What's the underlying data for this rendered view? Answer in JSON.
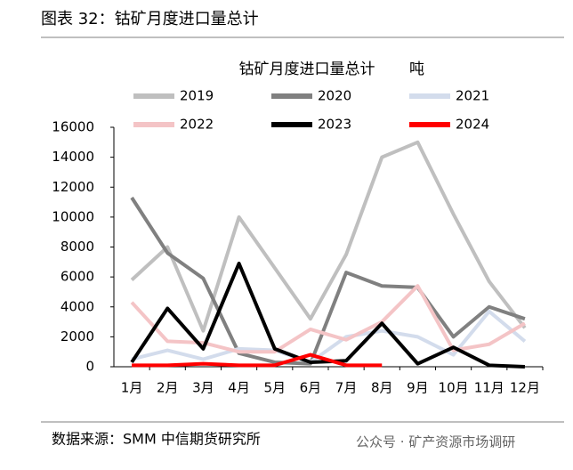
{
  "header": "图表 32：钴矿月度进口量总计",
  "source": "数据来源：SMM 中信期货研究所",
  "watermark": "公众号 · 矿产资源市场调研",
  "chart_data": {
    "type": "line",
    "title": "钴矿月度进口量总计",
    "y_label": "吨",
    "categories": [
      "1月",
      "2月",
      "3月",
      "4月",
      "5月",
      "6月",
      "7月",
      "8月",
      "9月",
      "10月",
      "11月",
      "12月"
    ],
    "series": [
      {
        "name": "2019",
        "color": "#bfbfbf",
        "values": [
          5800,
          8000,
          2400,
          10000,
          6600,
          3200,
          7500,
          14000,
          15000,
          10200,
          5700,
          2600
        ]
      },
      {
        "name": "2020",
        "color": "#808080",
        "values": [
          11300,
          7600,
          5900,
          900,
          300,
          200,
          6300,
          5400,
          5300,
          2000,
          4000,
          3200
        ]
      },
      {
        "name": "2021",
        "color": "#d3dcec",
        "values": [
          500,
          1100,
          500,
          1200,
          1100,
          300,
          2000,
          2400,
          2000,
          800,
          3700,
          1700
        ]
      },
      {
        "name": "2022",
        "color": "#f4c4c6",
        "values": [
          4300,
          1700,
          1600,
          1000,
          1000,
          2500,
          1800,
          3000,
          5400,
          1100,
          1500,
          2900
        ]
      },
      {
        "name": "2023",
        "color": "#000000",
        "values": [
          300,
          3900,
          1200,
          6900,
          1200,
          300,
          400,
          2900,
          200,
          1300,
          100,
          0
        ]
      },
      {
        "name": "2024",
        "color": "#ff0000",
        "values": [
          100,
          100,
          200,
          100,
          100,
          800,
          100,
          100,
          null,
          null,
          null,
          null
        ]
      }
    ],
    "ylim": [
      0,
      16000
    ],
    "yticks": [
      0,
      2000,
      4000,
      6000,
      8000,
      10000,
      12000,
      14000,
      16000
    ],
    "grid": false
  }
}
